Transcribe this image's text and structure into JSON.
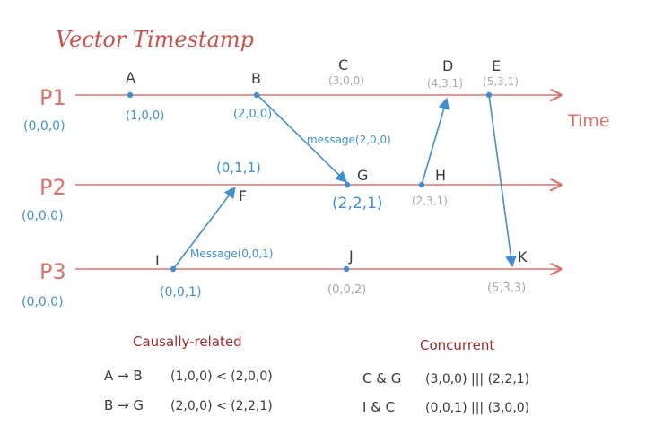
{
  "title": "Vector Timestamp",
  "time_label": "Time",
  "processes": [
    {
      "label": "P1",
      "init": "(0,0,0)"
    },
    {
      "label": "P2",
      "init": "(0,0,0)"
    },
    {
      "label": "P3",
      "init": "(0,0,0)"
    }
  ],
  "events": {
    "A": {
      "name": "A",
      "ts": "(1,0,0)"
    },
    "B": {
      "name": "B",
      "ts": "(2,0,0)"
    },
    "C": {
      "name": "C",
      "ts": "(3,0,0)"
    },
    "D": {
      "name": "D",
      "ts": "(4,3,1)"
    },
    "E": {
      "name": "E",
      "ts": "(5,3,1)"
    },
    "F": {
      "name": "F",
      "ts": "(0,1,1)"
    },
    "G": {
      "name": "G",
      "ts": "(2,2,1)"
    },
    "H": {
      "name": "H",
      "ts": "(2,3,1)"
    },
    "I": {
      "name": "I",
      "ts": "(0,0,1)"
    },
    "J": {
      "name": "J",
      "ts": "(0,0,2)"
    },
    "K": {
      "name": "K",
      "ts": "(5,3,3)"
    }
  },
  "messages": {
    "bg": "message(2,0,0)",
    "if": "Message(0,0,1)"
  },
  "causal": {
    "heading": "Causally-related",
    "rows": [
      {
        "pair": "A → B",
        "relation": "(1,0,0) < (2,0,0)"
      },
      {
        "pair": "B → G",
        "relation": "(2,0,0) < (2,2,1)"
      }
    ]
  },
  "concurrent": {
    "heading": "Concurrent",
    "rows": [
      {
        "pair": "C & G",
        "relation": "(3,0,0) ||| (2,2,1)"
      },
      {
        "pair": "I & C",
        "relation": "(0,0,1) ||| (3,0,0)"
      }
    ]
  },
  "colors": {
    "line": "#d9736b",
    "title": "#c9524a",
    "blue": "#3f8fd0",
    "grey": "#a9a9a9",
    "dark": "#3a3a3a",
    "red_digit": "#b8242a",
    "heading": "#9e2a2a"
  }
}
